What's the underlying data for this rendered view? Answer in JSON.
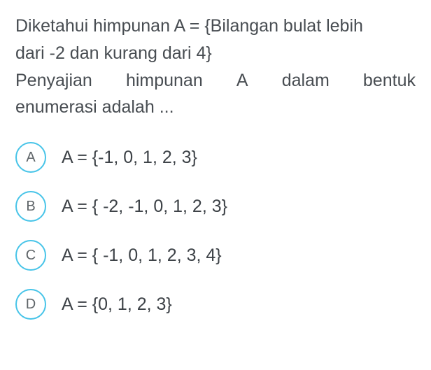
{
  "question": {
    "line1": "Diketahui himpunan A = {Bilangan bulat lebih",
    "line2": "dari -2 dan kurang dari 4}",
    "line3_words": [
      "Penyajian",
      "himpunan",
      "A",
      "dalam",
      "bentuk"
    ],
    "line4": "enumerasi adalah ..."
  },
  "options": [
    {
      "letter": "A",
      "text": "A = {-1, 0, 1, 2, 3}"
    },
    {
      "letter": "B",
      "text": "A = { -2, -1, 0, 1, 2, 3}"
    },
    {
      "letter": "C",
      "text": "A = { -1, 0, 1, 2, 3, 4}"
    },
    {
      "letter": "D",
      "text": "A = {0, 1, 2, 3}"
    }
  ],
  "style": {
    "text_color": "#484d52",
    "option_text_color": "#3d4247",
    "circle_border_color": "#47c4e8",
    "circle_letter_color": "#5e6468",
    "background_color": "#ffffff",
    "question_fontsize": 25,
    "option_fontsize": 25,
    "circle_size": 44
  }
}
